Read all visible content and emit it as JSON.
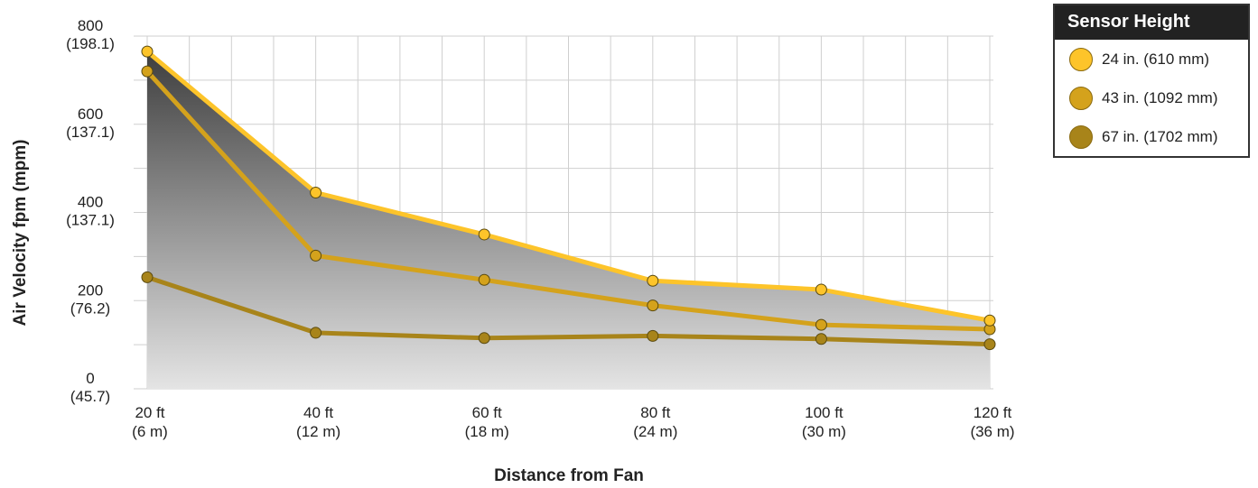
{
  "chart_data": {
    "type": "line",
    "xlabel": "Distance from Fan",
    "ylabel": "Air Velocity fpm (mpm)",
    "ylim": [
      0,
      800
    ],
    "x_ticks": [
      {
        "line1": "20 ft",
        "line2": "(6 m)"
      },
      {
        "line1": "40 ft",
        "line2": "(12 m)"
      },
      {
        "line1": "60 ft",
        "line2": "(18 m)"
      },
      {
        "line1": "80 ft",
        "line2": "(24 m)"
      },
      {
        "line1": "100 ft",
        "line2": "(30 m)"
      },
      {
        "line1": "120 ft",
        "line2": "(36 m)"
      }
    ],
    "x": [
      20,
      40,
      60,
      80,
      100,
      120
    ],
    "xlim": [
      20,
      120
    ],
    "y_ticks": [
      {
        "value": 0,
        "line1": "0",
        "line2": "(45.7)"
      },
      {
        "value": 200,
        "line1": "200",
        "line2": "(76.2)"
      },
      {
        "value": 400,
        "line1": "400",
        "line2": "(137.1)"
      },
      {
        "value": 600,
        "line1": "600",
        "line2": "(137.1)"
      },
      {
        "value": 800,
        "line1": "800",
        "line2": "(198.1)"
      }
    ],
    "grid": true,
    "legend": {
      "title": "Sensor Height",
      "placement": "top-right"
    },
    "series": [
      {
        "name": "24 in. (610 mm)",
        "color": "#FDC42A",
        "values": [
          765,
          445,
          350,
          245,
          225,
          155
        ]
      },
      {
        "name": "43 in. (1092 mm)",
        "color": "#D4A21C",
        "values": [
          720,
          302,
          247,
          189,
          145,
          135
        ]
      },
      {
        "name": "67 in. (1702 mm)",
        "color": "#A8841A",
        "values": [
          253,
          127,
          115,
          120,
          113,
          101
        ]
      }
    ]
  }
}
